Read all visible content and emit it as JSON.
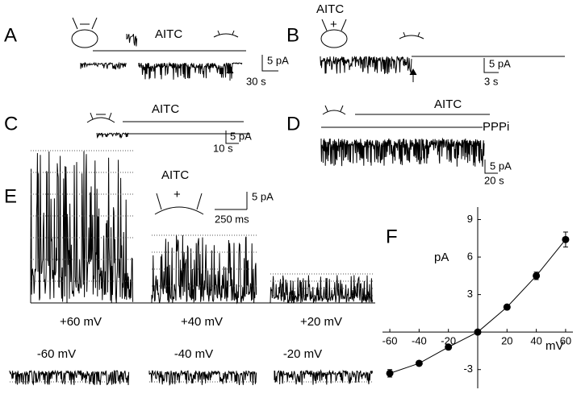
{
  "figure": {
    "A": {
      "label": "A",
      "stim": "AITC",
      "scale_y": "5 pA",
      "scale_x": "30 s"
    },
    "B": {
      "label": "B",
      "stim": "AITC",
      "sign": "+",
      "scale_y": "5 pA",
      "scale_x": "3 s"
    },
    "C": {
      "label": "C",
      "stim": "AITC",
      "scale_y": "5 pA",
      "scale_x": "10 s"
    },
    "D": {
      "label": "D",
      "stim": "AITC",
      "blocker": "PPPi",
      "scale_y": "5 pA",
      "scale_x": "20 s"
    },
    "E": {
      "label": "E",
      "stim": "AITC",
      "sign": "+",
      "scale_y": "5 pA",
      "scale_x": "250 ms",
      "voltages": [
        "+60 mV",
        "+40 mV",
        "+20 mV",
        "-60 mV",
        "-40 mV",
        "-20 mV"
      ]
    }
  },
  "chart_data": {
    "type": "scatter",
    "panel_label": "F",
    "xlabel": "mV",
    "ylabel": "pA",
    "x": [
      -60,
      -40,
      -20,
      0,
      20,
      40,
      60
    ],
    "values": [
      -3.3,
      -2.5,
      -1.2,
      0,
      2,
      4.5,
      7.4
    ],
    "errors": [
      0.3,
      0.1,
      0.1,
      0,
      0.1,
      0.3,
      0.6
    ],
    "xlim": [
      -65,
      65
    ],
    "ylim": [
      -4.5,
      10
    ],
    "xticks": [
      -60,
      -40,
      -20,
      20,
      40,
      60
    ],
    "yticks": [
      -3,
      3,
      6,
      9
    ]
  }
}
